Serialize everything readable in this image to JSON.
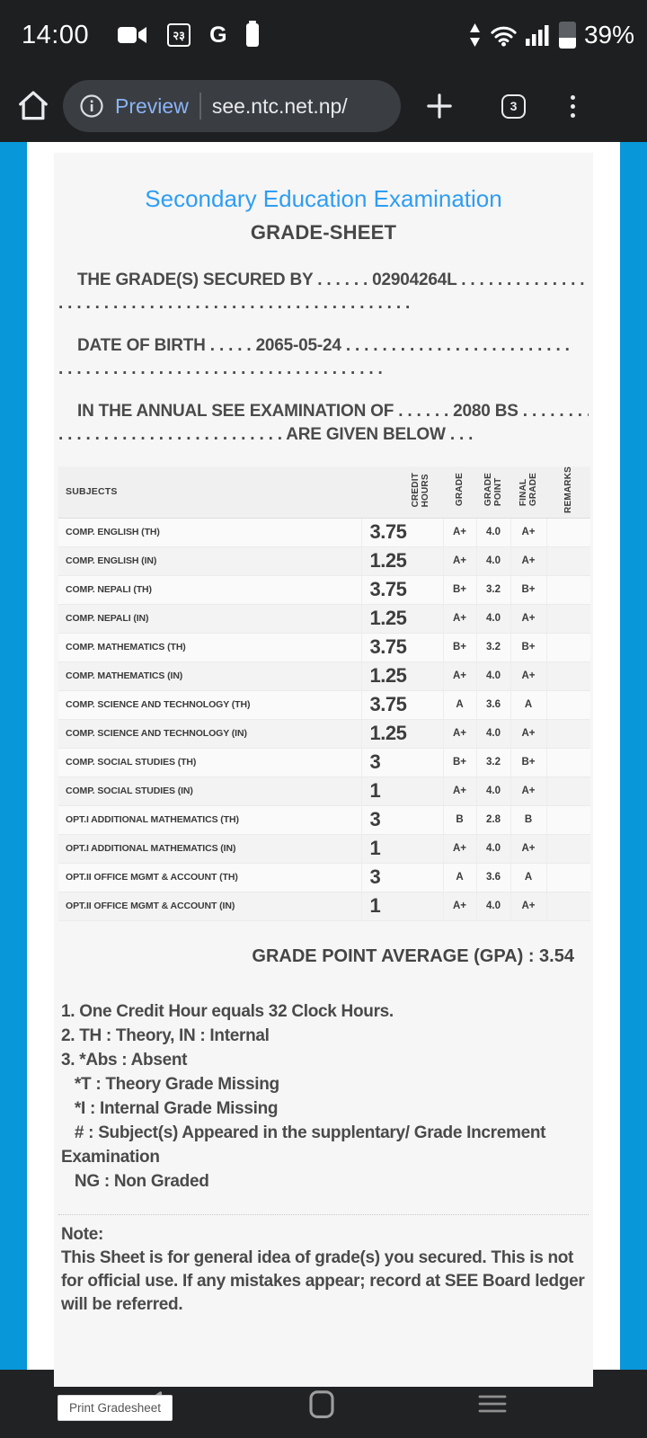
{
  "status_bar": {
    "time": "14:00",
    "notification_badge": "२३",
    "google_letter": "G",
    "battery_percent": "39%",
    "left_icon_names": [
      "camcorder-icon",
      "notification-badge-box",
      "google-g-icon",
      "battery-small-icon"
    ],
    "right_icon_names": [
      "data-transfer-icon",
      "wifi-icon",
      "signal-bars-icon",
      "battery-icon"
    ]
  },
  "browser_bar": {
    "preview_label": "Preview",
    "url": "see.ntc.net.np/",
    "tab_count": "3"
  },
  "page": {
    "accent_blue": "#0897d8",
    "title": "Secondary Education Examination",
    "title_color": "#2e9df3",
    "subtitle": "GRADE-SHEET",
    "secured_by_line": "THE GRADE(S) SECURED BY . . . . . . 02904264L . . . . . . . . . . . . . . .\n. . . . . . . . . . . . . . . . . . . . . . . . . . . . . . . . . . . . . . .",
    "dob_line": "DATE OF BIRTH . . . . . 2065-05-24 . . . . . . . . . . . . . . . . . . . . . . . . .\n. . . . . . . . . . . . . . . . . . . . . . . . . . . . . . . . . . . .",
    "exam_line": "IN THE ANNUAL SEE EXAMINATION OF . . . . . . 2080 BS . . . . . . . .\n. . . . . . . . . . . . . . . . . . . . . . . . . ARE GIVEN BELOW . . .",
    "gpa_line": "GRADE POINT AVERAGE (GPA) : 3.54",
    "notes": "1. One Credit Hour equals 32 Clock Hours.\n2. TH : Theory, IN : Internal\n3. *Abs : Absent\n   *T : Theory Grade Missing\n   *I : Internal Grade Missing\n   # : Subject(s) Appeared in the supplentary/ Grade Increment\nExamination\n   NG : Non Graded",
    "note_block": "Note:\nThis Sheet is for general idea of grade(s) you secured. This is not\nfor official use. If any mistakes appear; record at SEE Board ledger\nwill be referred.",
    "print_button_label": "Print Gradesheet"
  },
  "table": {
    "headers": [
      "SUBJECTS",
      "CREDIT\nHOURS",
      "GRADE",
      "GRADE\nPOINT",
      "FINAL\nGRADE",
      "REMARKS"
    ],
    "rows": [
      {
        "subject": "COMP. ENGLISH (TH)",
        "credit_hours": "3.75",
        "grade": "A+",
        "grade_point": "4.0",
        "final_grade": "A+",
        "remarks": ""
      },
      {
        "subject": "COMP. ENGLISH (IN)",
        "credit_hours": "1.25",
        "grade": "A+",
        "grade_point": "4.0",
        "final_grade": "A+",
        "remarks": ""
      },
      {
        "subject": "COMP. NEPALI (TH)",
        "credit_hours": "3.75",
        "grade": "B+",
        "grade_point": "3.2",
        "final_grade": "B+",
        "remarks": ""
      },
      {
        "subject": "COMP. NEPALI (IN)",
        "credit_hours": "1.25",
        "grade": "A+",
        "grade_point": "4.0",
        "final_grade": "A+",
        "remarks": ""
      },
      {
        "subject": "COMP. MATHEMATICS (TH)",
        "credit_hours": "3.75",
        "grade": "B+",
        "grade_point": "3.2",
        "final_grade": "B+",
        "remarks": ""
      },
      {
        "subject": "COMP. MATHEMATICS (IN)",
        "credit_hours": "1.25",
        "grade": "A+",
        "grade_point": "4.0",
        "final_grade": "A+",
        "remarks": ""
      },
      {
        "subject": "COMP. SCIENCE AND TECHNOLOGY (TH)",
        "credit_hours": "3.75",
        "grade": "A",
        "grade_point": "3.6",
        "final_grade": "A",
        "remarks": ""
      },
      {
        "subject": "COMP. SCIENCE AND TECHNOLOGY (IN)",
        "credit_hours": "1.25",
        "grade": "A+",
        "grade_point": "4.0",
        "final_grade": "A+",
        "remarks": ""
      },
      {
        "subject": "COMP. SOCIAL STUDIES (TH)",
        "credit_hours": "3",
        "grade": "B+",
        "grade_point": "3.2",
        "final_grade": "B+",
        "remarks": ""
      },
      {
        "subject": "COMP. SOCIAL STUDIES (IN)",
        "credit_hours": "1",
        "grade": "A+",
        "grade_point": "4.0",
        "final_grade": "A+",
        "remarks": ""
      },
      {
        "subject": "OPT.I ADDITIONAL MATHEMATICS (TH)",
        "credit_hours": "3",
        "grade": "B",
        "grade_point": "2.8",
        "final_grade": "B",
        "remarks": ""
      },
      {
        "subject": "OPT.I ADDITIONAL MATHEMATICS (IN)",
        "credit_hours": "1",
        "grade": "A+",
        "grade_point": "4.0",
        "final_grade": "A+",
        "remarks": ""
      },
      {
        "subject": "OPT.II OFFICE MGMT & ACCOUNT (TH)",
        "credit_hours": "3",
        "grade": "A",
        "grade_point": "3.6",
        "final_grade": "A",
        "remarks": ""
      },
      {
        "subject": "OPT.II OFFICE MGMT & ACCOUNT (IN)",
        "credit_hours": "1",
        "grade": "A+",
        "grade_point": "4.0",
        "final_grade": "A+",
        "remarks": ""
      }
    ]
  },
  "navigation_bar": {
    "icon_names": [
      "back-icon",
      "home-nav-icon",
      "recents-icon"
    ]
  }
}
